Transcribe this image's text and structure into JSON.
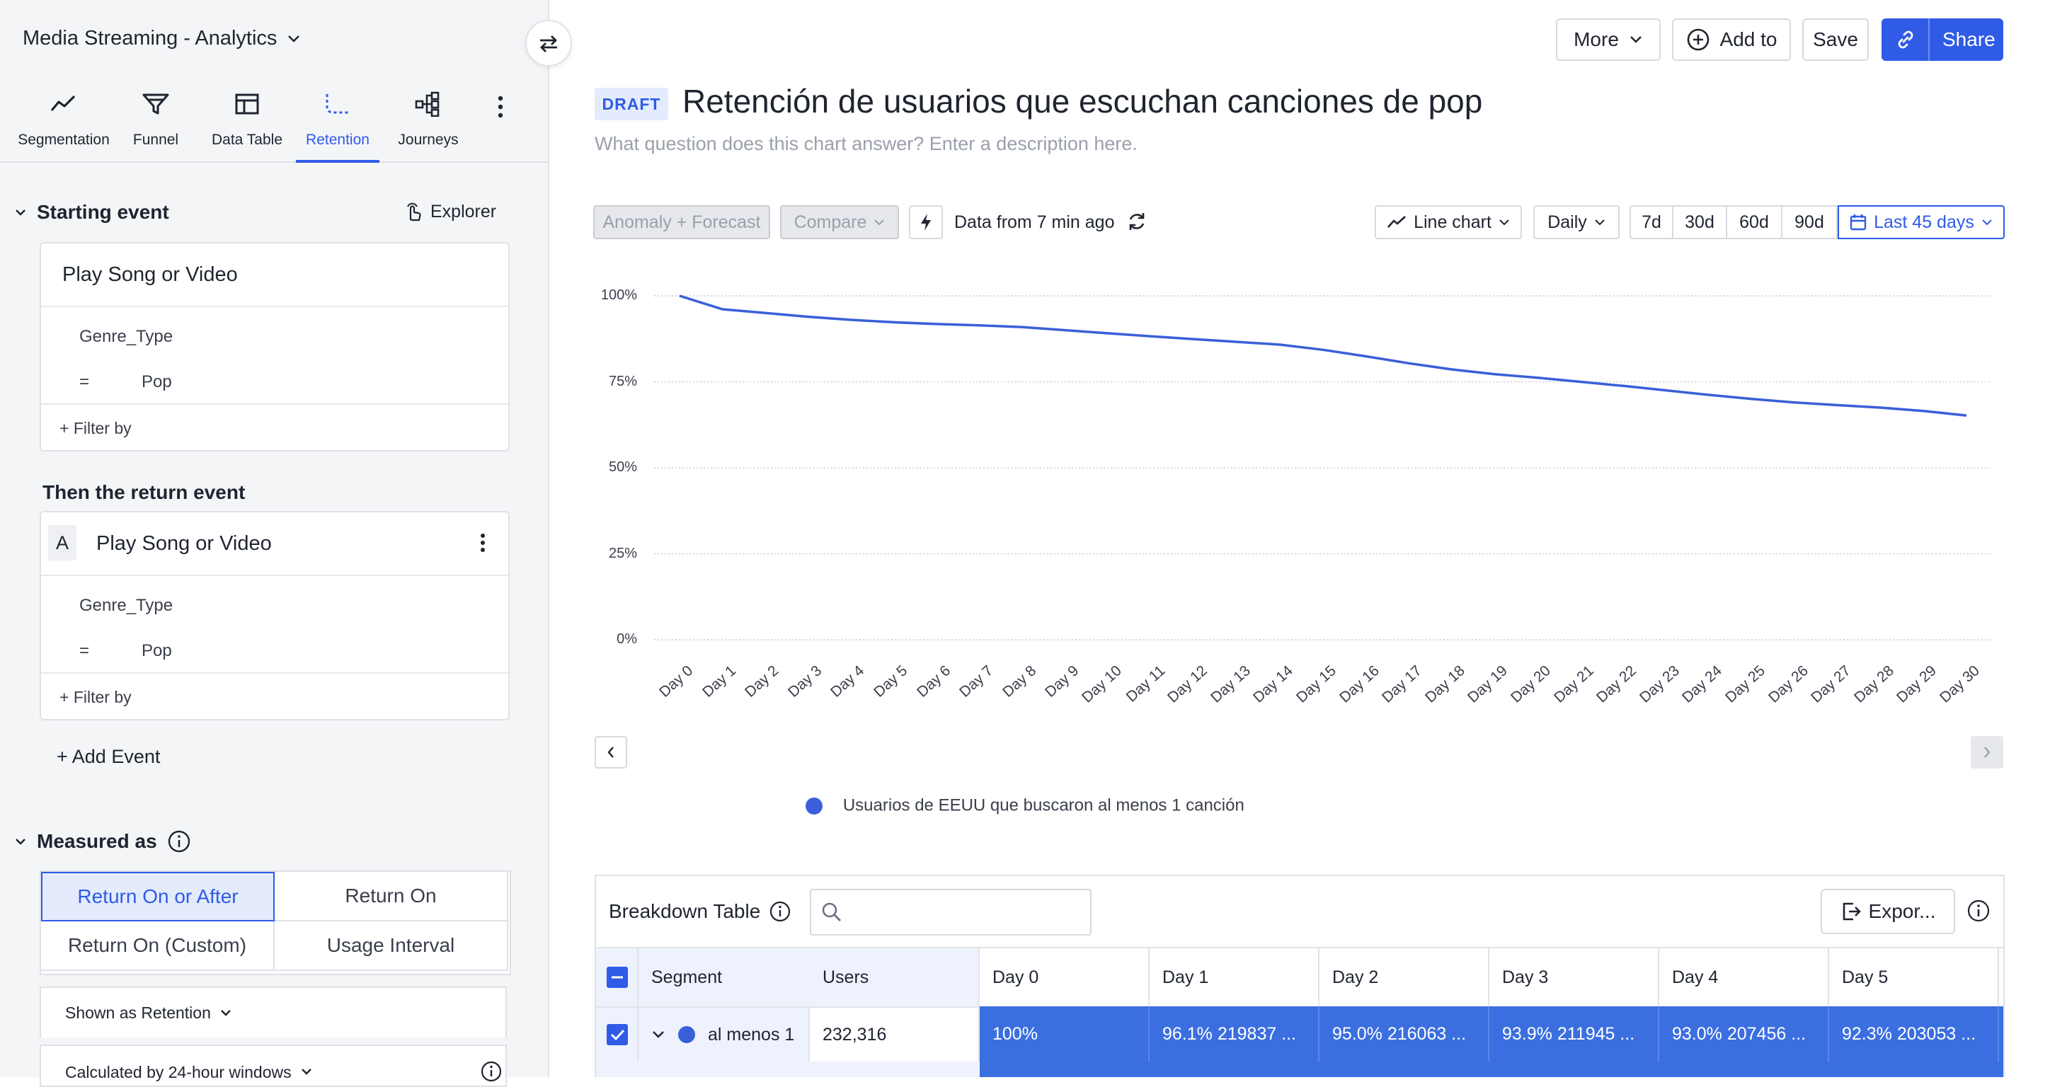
{
  "project": {
    "title": "Media Streaming - Analytics"
  },
  "nav": {
    "items": [
      {
        "label": "Segmentation",
        "icon": "line-chart-icon"
      },
      {
        "label": "Funnel",
        "icon": "funnel-icon"
      },
      {
        "label": "Data Table",
        "icon": "table-icon"
      },
      {
        "label": "Retention",
        "icon": "retention-icon",
        "active": true
      },
      {
        "label": "Journeys",
        "icon": "journeys-icon"
      }
    ]
  },
  "starting_event": {
    "header": "Starting event",
    "explorer_label": "Explorer",
    "event_name": "Play Song or Video",
    "property": "Genre_Type",
    "operator": "=",
    "value": "Pop",
    "filter_label": "+ Filter by"
  },
  "return_event": {
    "header": "Then the return event",
    "badge": "A",
    "event_name": "Play Song or Video",
    "property": "Genre_Type",
    "operator": "=",
    "value": "Pop",
    "filter_label": "+ Filter by"
  },
  "add_event_label": "+ Add Event",
  "measured_as": {
    "header": "Measured as",
    "options": [
      "Return On or After",
      "Return On",
      "Return On (Custom)",
      "Usage Interval"
    ],
    "selected": "Return On or After",
    "shown_as": "Shown as Retention",
    "calculated_by": "Calculated by 24-hour windows"
  },
  "header": {
    "more_label": "More",
    "add_to_label": "Add to",
    "save_label": "Save",
    "share_label": "Share"
  },
  "chart_header": {
    "draft_label": "DRAFT",
    "title": "Retención de usuarios que escuchan canciones de pop",
    "description_placeholder": "What question does this chart answer? Enter a description here."
  },
  "toolbar": {
    "anomaly_label": "Anomaly + Forecast",
    "compare_label": "Compare",
    "data_freshness": "Data from 7 min ago",
    "chart_type_label": "Line chart",
    "interval_label": "Daily",
    "ranges": [
      "7d",
      "30d",
      "60d",
      "90d"
    ],
    "active_range_label": "Last 45 days"
  },
  "colors": {
    "accent": "#2f5be7",
    "series": "#3a5fd9",
    "cell": "#3b6fe0"
  },
  "chart_data": {
    "type": "line",
    "title": "",
    "xlabel": "",
    "ylabel": "",
    "x": [
      "Day 0",
      "Day 1",
      "Day 2",
      "Day 3",
      "Day 4",
      "Day 5",
      "Day 6",
      "Day 7",
      "Day 8",
      "Day 9",
      "Day 10",
      "Day 11",
      "Day 12",
      "Day 13",
      "Day 14",
      "Day 15",
      "Day 16",
      "Day 17",
      "Day 18",
      "Day 19",
      "Day 20",
      "Day 21",
      "Day 22",
      "Day 23",
      "Day 24",
      "Day 25",
      "Day 26",
      "Day 27",
      "Day 28",
      "Day 29",
      "Day 30"
    ],
    "series": [
      {
        "name": "Usuarios de EEUU que buscaron al menos 1 canción",
        "values": [
          100,
          96.1,
          95.0,
          93.9,
          93.0,
          92.3,
          91.8,
          91.4,
          90.9,
          90.0,
          89.1,
          88.2,
          87.4,
          86.6,
          85.8,
          84.3,
          82.4,
          80.4,
          78.6,
          77.2,
          76.2,
          75.0,
          73.8,
          72.5,
          71.2,
          70.0,
          69.0,
          68.2,
          67.5,
          66.5,
          65.2
        ]
      }
    ],
    "yticks": [
      "0%",
      "25%",
      "50%",
      "75%",
      "100%"
    ],
    "ylim": [
      0,
      100
    ],
    "grid": true,
    "legend": "bottom"
  },
  "breakdown": {
    "title": "Breakdown Table",
    "export_label": "Expor...",
    "columns": [
      "Segment",
      "Users",
      "Day 0",
      "Day 1",
      "Day 2",
      "Day 3",
      "Day 4",
      "Day 5"
    ],
    "rows": [
      {
        "segment": "al menos 1",
        "users": "232,316",
        "cells": [
          "100%",
          "96.1% 219837 ...",
          "95.0% 216063 ...",
          "93.9% 211945 ...",
          "93.0% 207456 ...",
          "92.3% 203053 ..."
        ]
      }
    ]
  }
}
